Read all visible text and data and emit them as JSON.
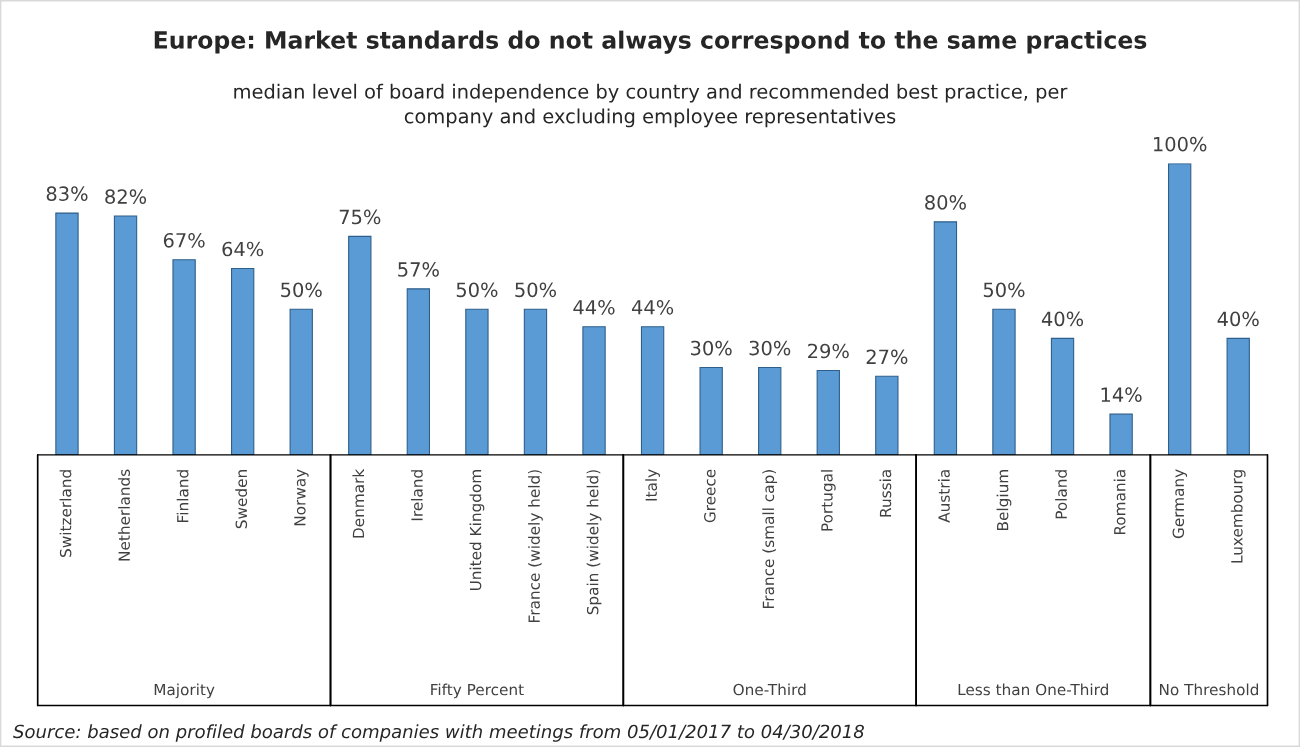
{
  "chart_data": [
    {
      "type": "bar",
      "title": "Europe: Market standards do not always correspond to the same practices",
      "subtitle": "median level of board independence by country and recommended best practice, per\ncompany and excluding employee representatives",
      "xlabel": "Majority",
      "categories": [
        "Switzerland",
        "Netherlands",
        "Finland",
        "Sweden",
        "Norway"
      ],
      "values": [
        83,
        82,
        67,
        64,
        50
      ],
      "value_labels": [
        "83%",
        "82%",
        "67%",
        "64%",
        "50%"
      ],
      "color": "#5b9bd5",
      "annotations": [
        "Source: based on profiled boards of companies with meetings from 05/01/2017 to 04/30/2018"
      ]
    },
    {
      "type": "bar",
      "xlabel": "Fifty Percent",
      "categories": [
        "Denmark",
        "Ireland",
        "United Kingdom",
        "France (widely held)",
        "Spain (widely held)"
      ],
      "values": [
        75,
        57,
        50,
        50,
        44
      ],
      "value_labels": [
        "75%",
        "57%",
        "50%",
        "50%",
        "44%"
      ],
      "color": "#5b9bd5"
    },
    {
      "type": "bar",
      "xlabel": "One-Third",
      "categories": [
        "Italy",
        "Greece",
        "France (small cap)",
        "Portugal",
        "Russia"
      ],
      "values": [
        44,
        30,
        30,
        29,
        27
      ],
      "value_labels": [
        "44%",
        "30%",
        "30%",
        "29%",
        "27%"
      ],
      "color": "#5b9bd5"
    },
    {
      "type": "bar",
      "xlabel": "Less than One-Third",
      "categories": [
        "Austria",
        "Belgium",
        "Poland",
        "Romania"
      ],
      "values": [
        80,
        50,
        40,
        14
      ],
      "value_labels": [
        "80%",
        "50%",
        "40%",
        "14%"
      ],
      "color": "#5b9bd5"
    },
    {
      "type": "bar",
      "xlabel": "No Threshold",
      "categories": [
        "Germany",
        "Luxembourg"
      ],
      "values": [
        100,
        40
      ],
      "value_labels": [
        "100%",
        "40%"
      ],
      "color": "#5b9bd5"
    }
  ]
}
